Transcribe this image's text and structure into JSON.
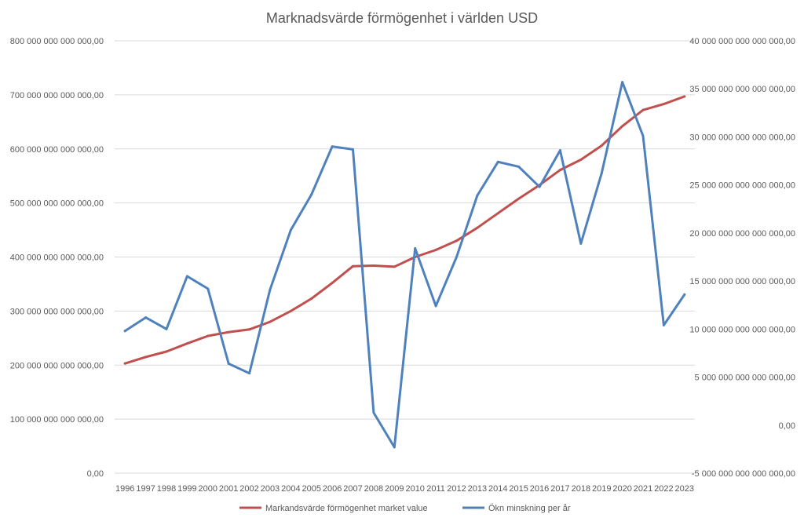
{
  "chart_data": {
    "type": "line",
    "title": "Marknadsvärde förmögenhet i världen USD",
    "xlabel": "",
    "ylabel": "",
    "grid": true,
    "legend_position": "bottom",
    "x": [
      "1996",
      "1997",
      "1998",
      "1999",
      "2000",
      "2001",
      "2002",
      "2003",
      "2004",
      "2005",
      "2006",
      "2007",
      "2008",
      "2009",
      "2010",
      "2011",
      "2012",
      "2013",
      "2014",
      "2015",
      "2016",
      "2017",
      "2018",
      "2019",
      "2020",
      "2021",
      "2022",
      "2023"
    ],
    "y_left": {
      "range": [
        0,
        800000000000000
      ],
      "ticks": [
        0,
        100000000000000,
        200000000000000,
        300000000000000,
        400000000000000,
        500000000000000,
        600000000000000,
        700000000000000,
        800000000000000
      ],
      "tick_labels": [
        "0,00",
        "100 000 000 000 000,00",
        "200 000 000 000 000,00",
        "300 000 000 000 000,00",
        "400 000 000 000 000,00",
        "500 000 000 000 000,00",
        "600 000 000 000 000,00",
        "700 000 000 000 000,00",
        "800 000 000 000 000,00"
      ]
    },
    "y_right": {
      "range": [
        -5000000000000000,
        40000000000000000
      ],
      "ticks": [
        -5000000000000000,
        0,
        5000000000000000,
        10000000000000000,
        15000000000000000,
        20000000000000000,
        25000000000000000,
        30000000000000000,
        35000000000000000,
        40000000000000000
      ],
      "tick_labels": [
        "-5 000 000 000 000 000,00",
        "0,00",
        "5 000 000 000 000 000,00",
        "10 000 000 000 000 000,00",
        "15 000 000 000 000 000,00",
        "20 000 000 000 000 000,00",
        "25 000 000 000 000 000,00",
        "30 000 000 000 000 000,00",
        "35 000 000 000 000 000,00",
        "40 000 000 000 000 000,00"
      ]
    },
    "series": [
      {
        "name": "Markandsvärde förmögenhet market value",
        "axis": "left",
        "color": "#c0504d",
        "values": [
          203000000000000,
          215000000000000,
          225000000000000,
          240000000000000,
          254000000000000,
          261000000000000,
          266000000000000,
          280000000000000,
          300000000000000,
          323000000000000,
          352000000000000,
          383000000000000,
          384000000000000,
          382000000000000,
          400000000000000,
          413000000000000,
          430000000000000,
          454000000000000,
          481000000000000,
          508000000000000,
          533000000000000,
          561000000000000,
          580000000000000,
          606000000000000,
          642000000000000,
          672000000000000,
          683000000000000,
          697000000000000
        ]
      },
      {
        "name": "Ökn minskning per år",
        "axis": "right",
        "color": "#4f81bd",
        "values": [
          9800000000000000,
          11200000000000000,
          10000000000000000,
          15500000000000000,
          14200000000000000,
          6400000000000000,
          5400000000000000,
          14100000000000000,
          20300000000000000,
          24000000000000000,
          29000000000000000,
          28700000000000000,
          1300000000000000,
          -2300000000000000,
          18400000000000000,
          12400000000000000,
          17500000000000000,
          23900000000000000,
          27400000000000000,
          26900000000000000,
          24800000000000000,
          28600000000000000,
          18900000000000000,
          26200000000000000,
          35700000000000000,
          30100000000000000,
          10400000000000000,
          13600000000000000
        ]
      }
    ]
  }
}
